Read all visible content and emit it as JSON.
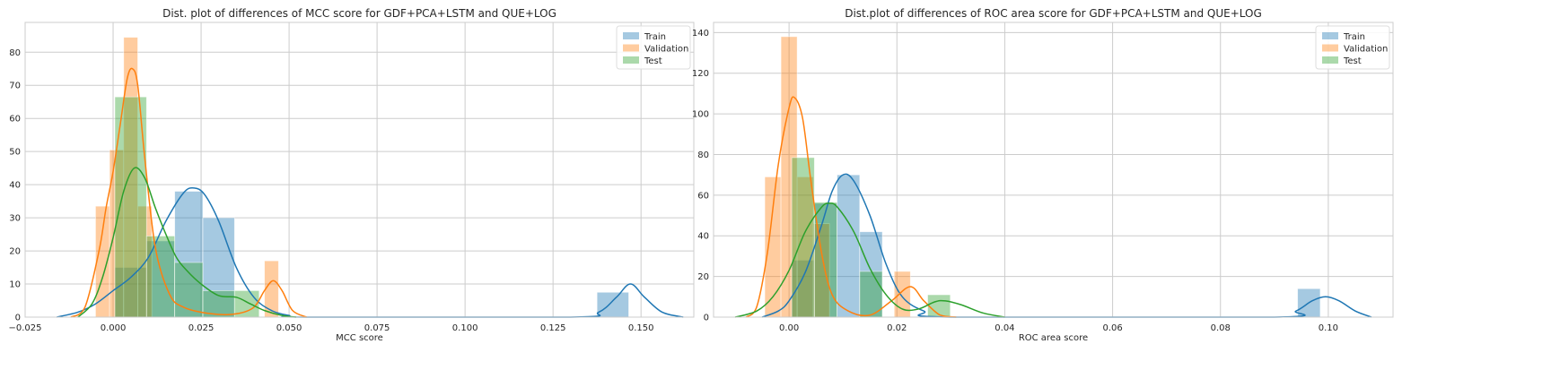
{
  "colors": {
    "train": "#1f77b4",
    "validation": "#ff7f0e",
    "test": "#2ca02c",
    "grid": "#cccccc",
    "axes_edge": "#cccccc"
  },
  "chart_data": [
    {
      "type": "histogram+kde",
      "title": "Dist. plot of differences of MCC score for GDF+PCA+LSTM and QUE+LOG",
      "xlabel": "MCC score",
      "ylabel": "",
      "xlim": [
        -0.025,
        0.165
      ],
      "ylim": [
        0,
        89
      ],
      "xticks": [
        -0.025,
        0.0,
        0.025,
        0.05,
        0.075,
        0.1,
        0.125,
        0.15
      ],
      "xtick_labels": [
        "−0.025",
        "0.000",
        "0.025",
        "0.050",
        "0.075",
        "0.100",
        "0.125",
        "0.150"
      ],
      "yticks": [
        0,
        10,
        20,
        30,
        40,
        50,
        60,
        70,
        80
      ],
      "yticks_labels": [
        "0",
        "10",
        "20",
        "30",
        "40",
        "50",
        "60",
        "70",
        "80"
      ],
      "grid": true,
      "legend": {
        "position": "top-right",
        "entries": [
          "Train",
          "Validation",
          "Test"
        ]
      },
      "hist_alpha": 0.4,
      "series": [
        {
          "name": "Train",
          "color_key": "train",
          "bins": [
            [
              0.0005,
              0.0095,
              15
            ],
            [
              0.0095,
              0.0175,
              23
            ],
            [
              0.0175,
              0.0255,
              38
            ],
            [
              0.0255,
              0.0345,
              30
            ],
            [
              0.1375,
              0.1465,
              7.5
            ]
          ],
          "kde": [
            [
              -0.016,
              0
            ],
            [
              -0.01,
              1.5
            ],
            [
              -0.005,
              4
            ],
            [
              0.0,
              8
            ],
            [
              0.005,
              12
            ],
            [
              0.01,
              18
            ],
            [
              0.015,
              29
            ],
            [
              0.02,
              37.5
            ],
            [
              0.023,
              39
            ],
            [
              0.026,
              37
            ],
            [
              0.03,
              29
            ],
            [
              0.035,
              15
            ],
            [
              0.04,
              6
            ],
            [
              0.045,
              2
            ],
            [
              0.05,
              0.5
            ],
            [
              0.055,
              0
            ],
            [
              0.13,
              0
            ],
            [
              0.138,
              1.5
            ],
            [
              0.143,
              6
            ],
            [
              0.147,
              10
            ],
            [
              0.151,
              6
            ],
            [
              0.156,
              1.5
            ],
            [
              0.162,
              0
            ]
          ]
        },
        {
          "name": "Validation",
          "color_key": "validation",
          "bins": [
            [
              -0.005,
              -0.001,
              33.5
            ],
            [
              -0.001,
              0.003,
              50.5
            ],
            [
              0.003,
              0.007,
              84.5
            ],
            [
              0.007,
              0.011,
              33.5
            ],
            [
              0.043,
              0.047,
              17
            ]
          ],
          "kde": [
            [
              -0.012,
              0
            ],
            [
              -0.008,
              3
            ],
            [
              -0.004,
              20
            ],
            [
              -0.002,
              33
            ],
            [
              0.0,
              44
            ],
            [
              0.002,
              58
            ],
            [
              0.004,
              72
            ],
            [
              0.0055,
              75
            ],
            [
              0.007,
              70
            ],
            [
              0.009,
              48
            ],
            [
              0.012,
              21
            ],
            [
              0.016,
              7
            ],
            [
              0.02,
              3
            ],
            [
              0.028,
              1
            ],
            [
              0.035,
              1
            ],
            [
              0.04,
              3
            ],
            [
              0.043,
              8
            ],
            [
              0.0455,
              11
            ],
            [
              0.048,
              8
            ],
            [
              0.051,
              2
            ],
            [
              0.055,
              0
            ]
          ]
        },
        {
          "name": "Test",
          "color_key": "test",
          "bins": [
            [
              0.0005,
              0.0095,
              66.5
            ],
            [
              0.0095,
              0.0175,
              24.5
            ],
            [
              0.0175,
              0.0255,
              16.5
            ],
            [
              0.0255,
              0.0345,
              8
            ],
            [
              0.0345,
              0.0415,
              8
            ]
          ],
          "kde": [
            [
              -0.01,
              0
            ],
            [
              -0.006,
              4
            ],
            [
              -0.003,
              12
            ],
            [
              0.0,
              24
            ],
            [
              0.003,
              38
            ],
            [
              0.006,
              45
            ],
            [
              0.009,
              42
            ],
            [
              0.012,
              33
            ],
            [
              0.015,
              25
            ],
            [
              0.018,
              18
            ],
            [
              0.021,
              14
            ],
            [
              0.025,
              10
            ],
            [
              0.03,
              6.5
            ],
            [
              0.035,
              6
            ],
            [
              0.039,
              4
            ],
            [
              0.043,
              2
            ],
            [
              0.048,
              0.5
            ],
            [
              0.052,
              0
            ]
          ]
        }
      ]
    },
    {
      "type": "histogram+kde",
      "title": "Dist.plot of differences of ROC area score for GDF+PCA+LSTM and QUE+LOG",
      "xlabel": "ROC area score",
      "ylabel": "",
      "xlim": [
        -0.014,
        0.112
      ],
      "ylim": [
        0,
        145
      ],
      "xticks": [
        0.0,
        0.02,
        0.04,
        0.06,
        0.08,
        0.1
      ],
      "xtick_labels": [
        "0.00",
        "0.02",
        "0.04",
        "0.06",
        "0.08",
        "0.10"
      ],
      "yticks": [
        0,
        20,
        40,
        60,
        80,
        100,
        120,
        140
      ],
      "yticks_labels": [
        "0",
        "20",
        "40",
        "60",
        "80",
        "100",
        "120",
        "140"
      ],
      "grid": true,
      "legend": {
        "position": "top-right",
        "entries": [
          "Train",
          "Validation",
          "Test"
        ]
      },
      "hist_alpha": 0.4,
      "series": [
        {
          "name": "Train",
          "color_key": "train",
          "bins": [
            [
              0.0005,
              0.0047,
              28
            ],
            [
              0.0047,
              0.0089,
              56
            ],
            [
              0.0089,
              0.0131,
              70
            ],
            [
              0.0131,
              0.0173,
              42
            ],
            [
              0.0943,
              0.0985,
              14
            ]
          ],
          "kde": [
            [
              -0.005,
              0
            ],
            [
              -0.002,
              3
            ],
            [
              0.0,
              8
            ],
            [
              0.003,
              22
            ],
            [
              0.006,
              45
            ],
            [
              0.008,
              62
            ],
            [
              0.01,
              70
            ],
            [
              0.012,
              67
            ],
            [
              0.015,
              50
            ],
            [
              0.018,
              26
            ],
            [
              0.021,
              10
            ],
            [
              0.025,
              3
            ],
            [
              0.03,
              0
            ],
            [
              0.09,
              0
            ],
            [
              0.094,
              3
            ],
            [
              0.097,
              8
            ],
            [
              0.0995,
              10
            ],
            [
              0.102,
              8
            ],
            [
              0.105,
              3
            ],
            [
              0.108,
              0
            ]
          ]
        },
        {
          "name": "Validation",
          "color_key": "validation",
          "bins": [
            [
              -0.0045,
              -0.0015,
              69
            ],
            [
              -0.0015,
              0.0015,
              138
            ],
            [
              0.0015,
              0.0045,
              69
            ],
            [
              0.0045,
              0.0075,
              46
            ],
            [
              0.0195,
              0.0225,
              22.5
            ]
          ],
          "kde": [
            [
              -0.008,
              0
            ],
            [
              -0.006,
              5
            ],
            [
              -0.004,
              32
            ],
            [
              -0.002,
              75
            ],
            [
              0.0,
              103
            ],
            [
              0.001,
              108
            ],
            [
              0.0025,
              98
            ],
            [
              0.004,
              68
            ],
            [
              0.006,
              32
            ],
            [
              0.008,
              11
            ],
            [
              0.011,
              3
            ],
            [
              0.015,
              1
            ],
            [
              0.019,
              8
            ],
            [
              0.0225,
              15
            ],
            [
              0.025,
              8
            ],
            [
              0.028,
              1
            ],
            [
              0.031,
              0
            ]
          ]
        },
        {
          "name": "Test",
          "color_key": "test",
          "bins": [
            [
              0.0005,
              0.0047,
              78.5
            ],
            [
              0.0047,
              0.0089,
              56.5
            ],
            [
              0.0131,
              0.0173,
              22.5
            ],
            [
              0.0257,
              0.0299,
              11
            ]
          ],
          "kde": [
            [
              -0.01,
              0
            ],
            [
              -0.006,
              3
            ],
            [
              -0.003,
              10
            ],
            [
              0.0,
              23
            ],
            [
              0.003,
              42
            ],
            [
              0.006,
              54
            ],
            [
              0.0075,
              56
            ],
            [
              0.009,
              54
            ],
            [
              0.012,
              42
            ],
            [
              0.015,
              24
            ],
            [
              0.018,
              11
            ],
            [
              0.021,
              4
            ],
            [
              0.024,
              4
            ],
            [
              0.027,
              7.5
            ],
            [
              0.029,
              8
            ],
            [
              0.032,
              6
            ],
            [
              0.036,
              2
            ],
            [
              0.04,
              0
            ]
          ]
        }
      ]
    }
  ]
}
